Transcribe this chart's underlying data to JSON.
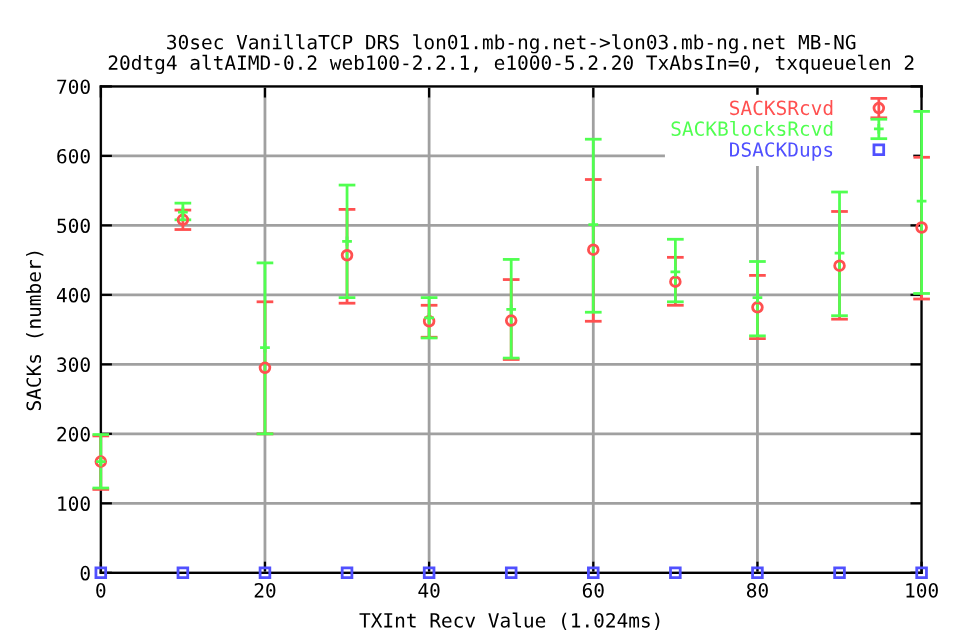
{
  "chart_data": {
    "type": "scatter",
    "title": "30sec VanillaTCP DRS lon01.mb-ng.net->lon03.mb-ng.net MB-NG\n20dtg4 altAIMD-0.2 web100-2.2.1, e1000-5.2.20 TxAbsIn=0, txqueuelen 2",
    "xlabel": "TXInt Recv Value (1.024ms)",
    "ylabel": "SACKs (number)",
    "xlim": [
      0,
      100
    ],
    "xticks": [
      0,
      20,
      40,
      60,
      80,
      100
    ],
    "ylim": [
      0,
      700
    ],
    "yticks": [
      0,
      100,
      200,
      300,
      400,
      500,
      600,
      700
    ],
    "grid": true,
    "legend": "top right",
    "series": [
      {
        "name": "SACKSRcvd",
        "color": "#ff5050",
        "marker": "circle",
        "x": [
          0,
          10,
          20,
          30,
          40,
          50,
          60,
          70,
          80,
          90,
          100
        ],
        "values": [
          160,
          508,
          295,
          457,
          362,
          363,
          465,
          419,
          382,
          442,
          497
        ],
        "errors": [
          [
            120,
            197
          ],
          [
            494,
            522
          ],
          [
            200,
            390
          ],
          [
            388,
            523
          ],
          [
            339,
            385
          ],
          [
            307,
            422
          ],
          [
            362,
            566
          ],
          [
            385,
            454
          ],
          [
            337,
            428
          ],
          [
            365,
            520
          ],
          [
            394,
            598
          ]
        ]
      },
      {
        "name": "SACKBlocksRcvd",
        "color": "#50ff50",
        "marker": "cross",
        "x": [
          0,
          10,
          20,
          30,
          40,
          50,
          60,
          70,
          80,
          90,
          100
        ],
        "values": [
          160,
          519,
          324,
          477,
          367,
          379,
          501,
          433,
          396,
          460,
          535
        ],
        "errors": [
          [
            122,
            199
          ],
          [
            508,
            532
          ],
          [
            200,
            446
          ],
          [
            396,
            558
          ],
          [
            338,
            396
          ],
          [
            309,
            451
          ],
          [
            375,
            624
          ],
          [
            390,
            480
          ],
          [
            341,
            448
          ],
          [
            370,
            548
          ],
          [
            402,
            664
          ]
        ]
      },
      {
        "name": "DSACKDups",
        "color": "#5050ff",
        "marker": "square",
        "x": [
          0,
          10,
          20,
          30,
          40,
          50,
          60,
          70,
          80,
          90,
          100
        ],
        "values": [
          0,
          0,
          0,
          0,
          0,
          0,
          0,
          0,
          0,
          0,
          0
        ]
      }
    ]
  }
}
